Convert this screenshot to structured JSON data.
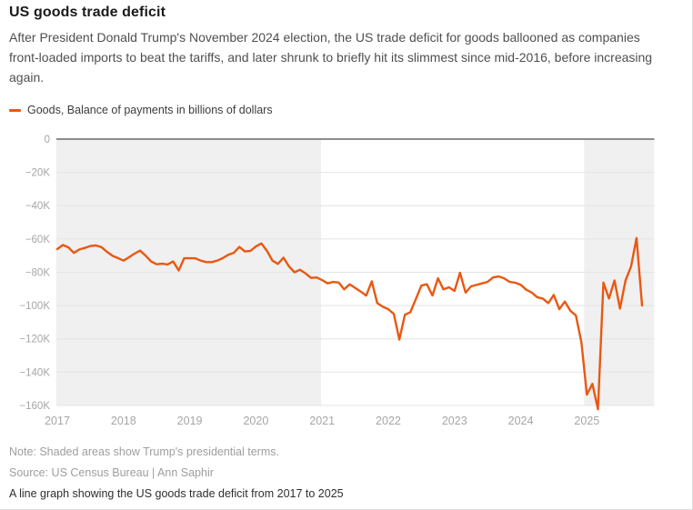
{
  "header": {
    "title": "US goods trade deficit",
    "description": "After President Donald Trump's November 2024 election, the US trade deficit for goods ballooned as companies front-loaded imports to beat the tariffs, and later shrunk to briefly hit its slimmest since mid-2016, before increasing again."
  },
  "legend": {
    "label": "Goods, Balance of payments in billions of dollars",
    "swatch_color": "#E95813"
  },
  "footer": {
    "note": "Note: Shaded areas show Trump's presidential terms.",
    "source": "Source: US Census Bureau | Ann Saphir",
    "alt_text": "A line graph showing the US goods trade deficit from 2017 to 2025"
  },
  "chart_data": {
    "type": "line",
    "title": "US goods trade deficit",
    "xlabel": "",
    "ylabel": "Goods, Balance of payments in billions of dollars",
    "frequency": "monthly",
    "start": "2017-01",
    "end": "2025-11",
    "ylim_billions": [
      -165,
      0
    ],
    "grid": true,
    "legend_position": "top-left",
    "y_axis": {
      "ticks": [
        {
          "label": "0",
          "value": 0
        },
        {
          "label": "−20K",
          "value": -20
        },
        {
          "label": "−40K",
          "value": -40
        },
        {
          "label": "−60K",
          "value": -60
        },
        {
          "label": "−80K",
          "value": -80
        },
        {
          "label": "−100K",
          "value": -100
        },
        {
          "label": "−120K",
          "value": -120
        },
        {
          "label": "−140K",
          "value": -140
        },
        {
          "label": "−160K",
          "value": -160
        }
      ]
    },
    "x_axis": {
      "ticks": [
        {
          "label": "2017",
          "month_index": 0
        },
        {
          "label": "2018",
          "month_index": 12
        },
        {
          "label": "2019",
          "month_index": 24
        },
        {
          "label": "2020",
          "month_index": 36
        },
        {
          "label": "2021",
          "month_index": 48
        },
        {
          "label": "2022",
          "month_index": 60
        },
        {
          "label": "2023",
          "month_index": 72
        },
        {
          "label": "2024",
          "month_index": 84
        },
        {
          "label": "2025",
          "month_index": 96
        }
      ]
    },
    "shaded_terms": [
      {
        "label": "Trump first presidential term",
        "start_month_index": -0.2,
        "end_month_index": 47.8
      },
      {
        "label": "Trump second presidential term",
        "start_month_index": 95.5,
        "end_month_index": 108.2
      }
    ],
    "series": [
      {
        "name": "Goods, Balance of payments in billions of dollars",
        "color": "#E95813",
        "values_billions": [
          -66.1,
          -63.6,
          -65.0,
          -68.4,
          -66.3,
          -65.4,
          -64.2,
          -63.9,
          -64.9,
          -67.7,
          -70.1,
          -71.5,
          -73.0,
          -71.0,
          -68.8,
          -67.0,
          -70.0,
          -73.5,
          -75.2,
          -74.9,
          -75.3,
          -73.5,
          -78.9,
          -71.6,
          -71.6,
          -71.6,
          -73.0,
          -73.9,
          -73.9,
          -73.0,
          -71.5,
          -69.5,
          -68.3,
          -64.8,
          -67.5,
          -67.2,
          -64.5,
          -62.7,
          -67.1,
          -73.0,
          -75.0,
          -71.2,
          -76.5,
          -80.0,
          -78.5,
          -80.7,
          -83.4,
          -83.1,
          -84.7,
          -86.7,
          -85.8,
          -86.2,
          -90.3,
          -87.2,
          -89.4,
          -91.6,
          -94.0,
          -85.4,
          -98.5,
          -100.7,
          -102.2,
          -105.0,
          -120.4,
          -105.5,
          -104.0,
          -96.0,
          -88.0,
          -87.2,
          -94.0,
          -83.6,
          -90.3,
          -89.0,
          -91.2,
          -80.3,
          -92.2,
          -88.5,
          -87.6,
          -86.7,
          -85.8,
          -83.1,
          -82.5,
          -83.6,
          -85.8,
          -86.3,
          -87.5,
          -90.5,
          -92.2,
          -95.0,
          -95.8,
          -98.5,
          -93.6,
          -102.2,
          -97.6,
          -103.1,
          -105.9,
          -122.0,
          -153.5,
          -147.0,
          -162.3,
          -86.2,
          -95.8,
          -84.9,
          -101.8,
          -85.0,
          -76.5,
          -59.5,
          -100.0
        ]
      }
    ],
    "colors": {
      "line": "#E95813",
      "term_shading": "#F0F0F0",
      "gridline": "#E4E4E4",
      "zero_line": "#8C8C8C",
      "axis_label": "#A6A6A6"
    }
  }
}
